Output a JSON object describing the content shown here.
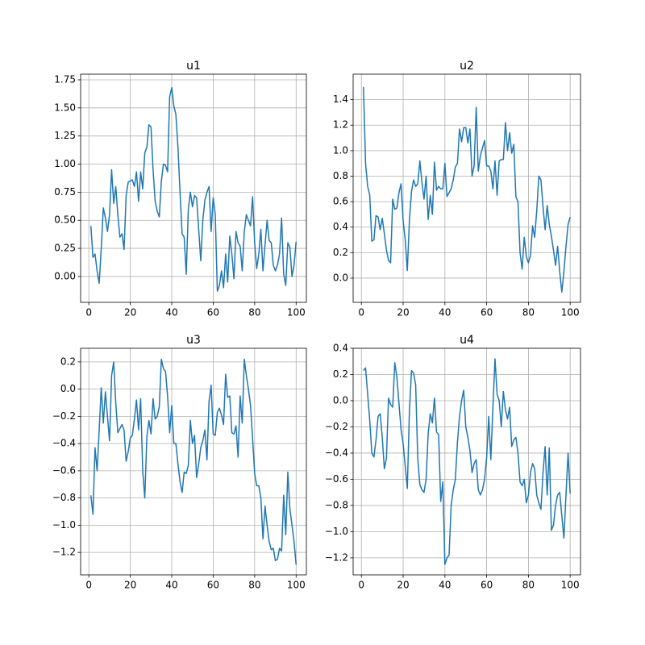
{
  "chart_data": [
    {
      "type": "line",
      "title": "u1",
      "color": "#1f77b4",
      "grid": true,
      "x": [
        1,
        2,
        3,
        4,
        5,
        6,
        7,
        8,
        9,
        10,
        11,
        12,
        13,
        14,
        15,
        16,
        17,
        18,
        19,
        20,
        21,
        22,
        23,
        24,
        25,
        26,
        27,
        28,
        29,
        30,
        31,
        32,
        33,
        34,
        35,
        36,
        37,
        38,
        39,
        40,
        41,
        42,
        43,
        44,
        45,
        46,
        47,
        48,
        49,
        50,
        51,
        52,
        53,
        54,
        55,
        56,
        57,
        58,
        59,
        60,
        61,
        62,
        63,
        64,
        65,
        66,
        67,
        68,
        69,
        70,
        71,
        72,
        73,
        74,
        75,
        76,
        77,
        78,
        79,
        80,
        81,
        82,
        83,
        84,
        85,
        86,
        87,
        88,
        89,
        90,
        91,
        92,
        93,
        94,
        95,
        96,
        97,
        98,
        99,
        100
      ],
      "values": [
        0.45,
        0.17,
        0.2,
        0.05,
        -0.06,
        0.25,
        0.61,
        0.52,
        0.4,
        0.55,
        0.95,
        0.65,
        0.8,
        0.55,
        0.35,
        0.38,
        0.24,
        0.72,
        0.84,
        0.85,
        0.86,
        0.8,
        0.93,
        0.67,
        0.93,
        0.78,
        1.1,
        1.15,
        1.35,
        1.33,
        0.95,
        0.67,
        0.58,
        0.53,
        0.85,
        1.0,
        0.99,
        0.93,
        1.6,
        1.68,
        1.52,
        1.44,
        1.15,
        0.75,
        0.38,
        0.35,
        0.02,
        0.6,
        0.75,
        0.62,
        0.72,
        0.7,
        0.42,
        0.14,
        0.5,
        0.68,
        0.75,
        0.8,
        0.4,
        0.7,
        0.55,
        -0.13,
        -0.08,
        0.05,
        -0.1,
        0.2,
        -0.05,
        0.36,
        0.2,
        -0.02,
        0.4,
        0.3,
        0.27,
        0.05,
        0.4,
        0.55,
        0.5,
        0.45,
        0.71,
        0.3,
        0.07,
        0.2,
        0.42,
        0.05,
        0.28,
        0.5,
        0.32,
        0.3,
        0.1,
        0.05,
        0.1,
        0.2,
        0.52,
        0.02,
        -0.08,
        0.3,
        0.26,
        0.0,
        0.1,
        0.31
      ],
      "xlim": [
        -3.95,
        104.95
      ],
      "xticks": [
        0,
        20,
        40,
        60,
        80,
        100
      ],
      "ylim": [
        -0.23,
        1.8
      ],
      "yticks": [
        {
          "value": 0,
          "label": "0.00"
        },
        {
          "value": 0.25,
          "label": "0.25"
        },
        {
          "value": 0.5,
          "label": "0.50"
        },
        {
          "value": 0.75,
          "label": "0.75"
        },
        {
          "value": 1,
          "label": "1.00"
        },
        {
          "value": 1.25,
          "label": "1.25"
        },
        {
          "value": 1.5,
          "label": "1.50"
        },
        {
          "value": 1.75,
          "label": "1.75"
        }
      ]
    },
    {
      "type": "line",
      "title": "u2",
      "color": "#1f77b4",
      "grid": true,
      "x": [
        1,
        2,
        3,
        4,
        5,
        6,
        7,
        8,
        9,
        10,
        11,
        12,
        13,
        14,
        15,
        16,
        17,
        18,
        19,
        20,
        21,
        22,
        23,
        24,
        25,
        26,
        27,
        28,
        29,
        30,
        31,
        32,
        33,
        34,
        35,
        36,
        37,
        38,
        39,
        40,
        41,
        42,
        43,
        44,
        45,
        46,
        47,
        48,
        49,
        50,
        51,
        52,
        53,
        54,
        55,
        56,
        57,
        58,
        59,
        60,
        61,
        62,
        63,
        64,
        65,
        66,
        67,
        68,
        69,
        70,
        71,
        72,
        73,
        74,
        75,
        76,
        77,
        78,
        79,
        80,
        81,
        82,
        83,
        84,
        85,
        86,
        87,
        88,
        89,
        90,
        91,
        92,
        93,
        94,
        95,
        96,
        97,
        98,
        99,
        100
      ],
      "values": [
        1.5,
        0.9,
        0.72,
        0.65,
        0.29,
        0.3,
        0.49,
        0.48,
        0.38,
        0.47,
        0.35,
        0.22,
        0.14,
        0.12,
        0.62,
        0.54,
        0.55,
        0.67,
        0.74,
        0.45,
        0.3,
        0.06,
        0.45,
        0.68,
        0.77,
        0.72,
        0.74,
        0.92,
        0.75,
        0.62,
        0.8,
        0.46,
        0.65,
        0.5,
        0.91,
        0.69,
        0.72,
        0.7,
        0.7,
        0.9,
        0.64,
        0.67,
        0.7,
        0.77,
        0.87,
        0.9,
        1.17,
        1.07,
        1.18,
        1.18,
        1.06,
        1.17,
        0.8,
        0.88,
        1.34,
        0.84,
        0.96,
        1.02,
        1.08,
        0.88,
        0.88,
        0.84,
        0.7,
        0.92,
        0.65,
        0.92,
        0.93,
        0.93,
        1.22,
        1.0,
        1.14,
        0.98,
        1.05,
        0.64,
        0.6,
        0.2,
        0.07,
        0.32,
        0.17,
        0.12,
        0.18,
        0.41,
        0.32,
        0.53,
        0.8,
        0.77,
        0.56,
        0.38,
        0.57,
        0.42,
        0.33,
        0.22,
        0.1,
        0.25,
        0.05,
        -0.11,
        0.05,
        0.25,
        0.42,
        0.48
      ],
      "xlim": [
        -3.95,
        104.95
      ],
      "xticks": [
        0,
        20,
        40,
        60,
        80,
        100
      ],
      "ylim": [
        -0.19,
        1.6
      ],
      "yticks": [
        {
          "value": 0,
          "label": "0.0"
        },
        {
          "value": 0.2,
          "label": "0.2"
        },
        {
          "value": 0.4,
          "label": "0.4"
        },
        {
          "value": 0.6,
          "label": "0.6"
        },
        {
          "value": 0.8,
          "label": "0.8"
        },
        {
          "value": 1,
          "label": "1.0"
        },
        {
          "value": 1.2,
          "label": "1.2"
        },
        {
          "value": 1.4,
          "label": "1.4"
        }
      ]
    },
    {
      "type": "line",
      "title": "u3",
      "color": "#1f77b4",
      "grid": true,
      "x": [
        1,
        2,
        3,
        4,
        5,
        6,
        7,
        8,
        9,
        10,
        11,
        12,
        13,
        14,
        15,
        16,
        17,
        18,
        19,
        20,
        21,
        22,
        23,
        24,
        25,
        26,
        27,
        28,
        29,
        30,
        31,
        32,
        33,
        34,
        35,
        36,
        37,
        38,
        39,
        40,
        41,
        42,
        43,
        44,
        45,
        46,
        47,
        48,
        49,
        50,
        51,
        52,
        53,
        54,
        55,
        56,
        57,
        58,
        59,
        60,
        61,
        62,
        63,
        64,
        65,
        66,
        67,
        68,
        69,
        70,
        71,
        72,
        73,
        74,
        75,
        76,
        77,
        78,
        79,
        80,
        81,
        82,
        83,
        84,
        85,
        86,
        87,
        88,
        89,
        90,
        91,
        92,
        93,
        94,
        95,
        96,
        97,
        98,
        99,
        100
      ],
      "values": [
        -0.78,
        -0.92,
        -0.43,
        -0.6,
        -0.3,
        0.01,
        -0.25,
        -0.02,
        -0.2,
        -0.38,
        0.1,
        0.2,
        -0.1,
        -0.32,
        -0.29,
        -0.26,
        -0.3,
        -0.53,
        -0.46,
        -0.36,
        -0.34,
        -0.22,
        -0.08,
        -0.3,
        -0.07,
        -0.6,
        -0.8,
        -0.35,
        -0.23,
        -0.33,
        -0.07,
        -0.22,
        -0.2,
        -0.13,
        0.22,
        0.15,
        0.13,
        -0.05,
        -0.32,
        -0.12,
        -0.4,
        -0.4,
        -0.55,
        -0.68,
        -0.76,
        -0.61,
        -0.62,
        -0.56,
        -0.23,
        -0.4,
        -0.34,
        -0.65,
        -0.55,
        -0.43,
        -0.38,
        -0.3,
        -0.52,
        -0.09,
        0.03,
        -0.33,
        -0.34,
        -0.17,
        -0.14,
        -0.19,
        -0.26,
        0.11,
        -0.06,
        -0.05,
        -0.32,
        -0.33,
        -0.27,
        -0.5,
        -0.05,
        -0.25,
        0.22,
        0.1,
        0.0,
        -0.12,
        -0.36,
        -0.62,
        -0.71,
        -0.71,
        -0.8,
        -1.1,
        -0.86,
        -1.0,
        -1.12,
        -1.18,
        -1.17,
        -1.26,
        -1.25,
        -1.17,
        -1.19,
        -0.78,
        -1.07,
        -0.61,
        -0.88,
        -1.0,
        -1.12,
        -1.29
      ],
      "xlim": [
        -3.95,
        104.95
      ],
      "xticks": [
        0,
        20,
        40,
        60,
        80,
        100
      ],
      "ylim": [
        -1.365,
        0.3
      ],
      "yticks": [
        {
          "value": -1.2,
          "label": "−1.2"
        },
        {
          "value": -1,
          "label": "−1.0"
        },
        {
          "value": -0.8,
          "label": "−0.8"
        },
        {
          "value": -0.6,
          "label": "−0.6"
        },
        {
          "value": -0.4,
          "label": "−0.4"
        },
        {
          "value": -0.2,
          "label": "−0.2"
        },
        {
          "value": 0,
          "label": "0.0"
        },
        {
          "value": 0.2,
          "label": "0.2"
        }
      ]
    },
    {
      "type": "line",
      "title": "u4",
      "color": "#1f77b4",
      "grid": true,
      "x": [
        1,
        2,
        3,
        4,
        5,
        6,
        7,
        8,
        9,
        10,
        11,
        12,
        13,
        14,
        15,
        16,
        17,
        18,
        19,
        20,
        21,
        22,
        23,
        24,
        25,
        26,
        27,
        28,
        29,
        30,
        31,
        32,
        33,
        34,
        35,
        36,
        37,
        38,
        39,
        40,
        41,
        42,
        43,
        44,
        45,
        46,
        47,
        48,
        49,
        50,
        51,
        52,
        53,
        54,
        55,
        56,
        57,
        58,
        59,
        60,
        61,
        62,
        63,
        64,
        65,
        66,
        67,
        68,
        69,
        70,
        71,
        72,
        73,
        74,
        75,
        76,
        77,
        78,
        79,
        80,
        81,
        82,
        83,
        84,
        85,
        86,
        87,
        88,
        89,
        90,
        91,
        92,
        93,
        94,
        95,
        96,
        97,
        98,
        99,
        100
      ],
      "values": [
        0.23,
        0.25,
        0.05,
        -0.15,
        -0.4,
        -0.43,
        -0.3,
        -0.12,
        -0.1,
        -0.28,
        -0.52,
        -0.44,
        0.02,
        -0.03,
        -0.05,
        0.29,
        0.18,
        -0.02,
        -0.22,
        -0.33,
        -0.5,
        -0.67,
        -0.08,
        0.23,
        0.21,
        0.12,
        -0.44,
        -0.64,
        -0.68,
        -0.7,
        -0.6,
        -0.25,
        -0.1,
        -0.17,
        0.02,
        -0.24,
        -0.26,
        -0.77,
        -0.62,
        -1.25,
        -1.2,
        -1.18,
        -0.8,
        -0.68,
        -0.6,
        -0.32,
        -0.12,
        0.0,
        0.08,
        -0.2,
        -0.28,
        -0.38,
        -0.55,
        -0.48,
        -0.45,
        -0.68,
        -0.72,
        -0.68,
        -0.6,
        -0.43,
        -0.12,
        -0.45,
        -0.05,
        0.32,
        0.05,
        0.0,
        -0.2,
        0.07,
        -0.07,
        -0.14,
        -0.05,
        -0.35,
        -0.3,
        -0.28,
        -0.4,
        -0.62,
        -0.65,
        -0.6,
        -0.78,
        -0.72,
        -0.55,
        -0.48,
        -0.52,
        -0.72,
        -0.78,
        -0.83,
        -0.55,
        -0.35,
        -0.72,
        -0.36,
        -0.99,
        -0.95,
        -0.8,
        -0.72,
        -0.7,
        -0.88,
        -1.05,
        -0.72,
        -0.4,
        -0.71
      ],
      "xlim": [
        -3.95,
        104.95
      ],
      "xticks": [
        0,
        20,
        40,
        60,
        80,
        100
      ],
      "ylim": [
        -1.33,
        0.4
      ],
      "yticks": [
        {
          "value": -1.2,
          "label": "−1.2"
        },
        {
          "value": -1,
          "label": "−1.0"
        },
        {
          "value": -0.8,
          "label": "−0.8"
        },
        {
          "value": -0.6,
          "label": "−0.6"
        },
        {
          "value": -0.4,
          "label": "−0.4"
        },
        {
          "value": -0.2,
          "label": "−0.2"
        },
        {
          "value": 0,
          "label": "0.0"
        },
        {
          "value": 0.2,
          "label": "0.2"
        },
        {
          "value": 0.4,
          "label": "0.4"
        }
      ]
    }
  ]
}
